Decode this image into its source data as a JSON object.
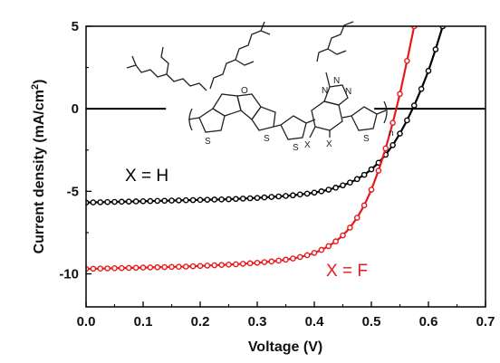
{
  "chart_data": {
    "type": "line",
    "xlabel": "Voltage (V)",
    "ylabel": "Current density (mA/cm",
    "ylabel_sup": "2",
    "ylabel_end": ")",
    "xlim": [
      0.0,
      0.7
    ],
    "ylim": [
      -12,
      5
    ],
    "x_ticks": [
      "0.0",
      "0.1",
      "0.2",
      "0.3",
      "0.4",
      "0.5",
      "0.6",
      "0.7"
    ],
    "y_ticks": [
      "5",
      "0",
      "-5",
      "-10"
    ],
    "zero_line_segments": [
      [
        0.0,
        0.14
      ],
      [
        0.505,
        0.7
      ]
    ],
    "series": [
      {
        "name": "X = H",
        "color": "#000000",
        "x": [
          0.0,
          0.0125,
          0.025,
          0.0375,
          0.05,
          0.0625,
          0.075,
          0.0875,
          0.1,
          0.1125,
          0.125,
          0.1375,
          0.15,
          0.1625,
          0.175,
          0.1875,
          0.2,
          0.2125,
          0.225,
          0.2375,
          0.25,
          0.2625,
          0.275,
          0.2875,
          0.3,
          0.3125,
          0.325,
          0.3375,
          0.35,
          0.3625,
          0.375,
          0.3875,
          0.4,
          0.4125,
          0.425,
          0.4375,
          0.45,
          0.4625,
          0.475,
          0.4875,
          0.5,
          0.5125,
          0.525,
          0.5375,
          0.55,
          0.5625,
          0.575,
          0.5875,
          0.6,
          0.6125,
          0.625
        ],
        "y": [
          -5.68,
          -5.67,
          -5.66,
          -5.65,
          -5.64,
          -5.63,
          -5.62,
          -5.61,
          -5.6,
          -5.59,
          -5.58,
          -5.57,
          -5.56,
          -5.55,
          -5.54,
          -5.53,
          -5.52,
          -5.51,
          -5.5,
          -5.49,
          -5.48,
          -5.46,
          -5.44,
          -5.42,
          -5.4,
          -5.37,
          -5.34,
          -5.31,
          -5.28,
          -5.24,
          -5.19,
          -5.14,
          -5.08,
          -5.0,
          -4.9,
          -4.78,
          -4.64,
          -4.47,
          -4.26,
          -4.0,
          -3.67,
          -3.27,
          -2.78,
          -2.2,
          -1.5,
          -0.7,
          0.2,
          1.2,
          2.3,
          3.6,
          5.0
        ]
      },
      {
        "name": "X = F",
        "color": "#e8191c",
        "x": [
          0.0,
          0.0125,
          0.025,
          0.0375,
          0.05,
          0.0625,
          0.075,
          0.0875,
          0.1,
          0.1125,
          0.125,
          0.1375,
          0.15,
          0.1625,
          0.175,
          0.1875,
          0.2,
          0.2125,
          0.225,
          0.2375,
          0.25,
          0.2625,
          0.275,
          0.2875,
          0.3,
          0.3125,
          0.325,
          0.3375,
          0.35,
          0.3625,
          0.375,
          0.3875,
          0.4,
          0.4125,
          0.425,
          0.4375,
          0.45,
          0.4625,
          0.475,
          0.4875,
          0.5,
          0.5125,
          0.525,
          0.5375,
          0.55,
          0.5625,
          0.575
        ],
        "y": [
          -9.7,
          -9.69,
          -9.68,
          -9.67,
          -9.66,
          -9.65,
          -9.64,
          -9.63,
          -9.62,
          -9.61,
          -9.6,
          -9.59,
          -9.58,
          -9.57,
          -9.56,
          -9.54,
          -9.52,
          -9.5,
          -9.48,
          -9.46,
          -9.44,
          -9.42,
          -9.39,
          -9.36,
          -9.33,
          -9.29,
          -9.25,
          -9.2,
          -9.14,
          -9.07,
          -8.98,
          -8.87,
          -8.73,
          -8.55,
          -8.32,
          -8.03,
          -7.67,
          -7.2,
          -6.6,
          -5.85,
          -4.9,
          -3.75,
          -2.4,
          -0.85,
          0.9,
          2.9,
          5.0
        ]
      }
    ],
    "annotations": {
      "series_h_label": "X = H",
      "series_f_label": "X = F"
    },
    "molecule": {
      "atom_s": "S",
      "atom_o": "O",
      "atom_n": "N",
      "atom_x": "X",
      "repeat_n": "n",
      "colors": {
        "oxygen": "#22bb22",
        "substituent": "#1a2ad0",
        "bond": "#222222"
      }
    },
    "grid": false,
    "legend": "none"
  }
}
